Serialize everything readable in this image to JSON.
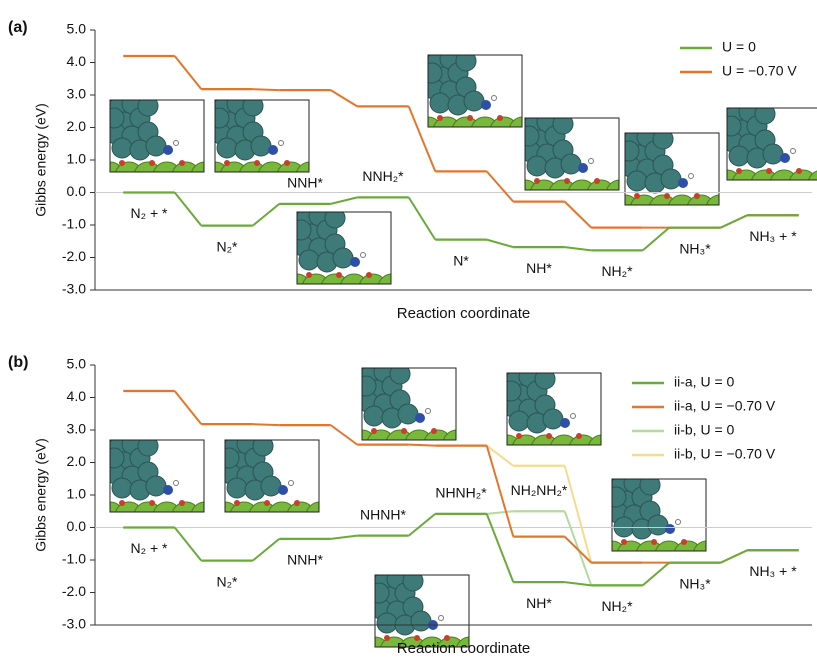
{
  "chart_data": [
    {
      "type": "step",
      "title": "(a)",
      "y_label": "Gibbs energy (eV)",
      "x_label": "Reaction coordinate",
      "categories": [
        "N₂ + *",
        "N₂*",
        "NNH*",
        "NNH₂*",
        "N*",
        "NH*",
        "NH₂*",
        "NH₃*",
        "NH₃ + *"
      ],
      "series": [
        {
          "name": "U = 0",
          "color": "#6aaa3a",
          "values": [
            0,
            -1.02,
            -0.35,
            -0.15,
            -1.45,
            -1.68,
            -1.78,
            -1.08,
            -0.7
          ]
        },
        {
          "name": "U = −0.70 V",
          "color": "#e3762c",
          "values": [
            4.2,
            3.18,
            3.15,
            2.65,
            0.65,
            -0.28,
            -1.08,
            -1.08,
            -0.7
          ]
        }
      ],
      "ylim": [
        -3,
        5
      ],
      "yticks": [
        {
          "value": 5,
          "label": "5.0"
        },
        {
          "value": 4,
          "label": "4.0"
        },
        {
          "value": 3,
          "label": "3.0"
        },
        {
          "value": 2,
          "label": "2.0"
        },
        {
          "value": 1,
          "label": "1.0"
        },
        {
          "value": 0,
          "label": "0.0"
        },
        {
          "value": -1,
          "label": "-1.0"
        },
        {
          "value": -2,
          "label": "-2.0"
        },
        {
          "value": -3,
          "label": "-3.0"
        }
      ],
      "legend": "upper right"
    },
    {
      "type": "step",
      "title": "(b)",
      "y_label": "Gibbs energy (eV)",
      "x_label": "Reaction coordinate",
      "categories": [
        "N₂ + *",
        "N₂*",
        "NNH*",
        "NHNH*",
        "NHNH₂*",
        "NH*",
        "NH₂*",
        "NH₃*",
        "NH₃ + *"
      ],
      "annotations": [
        "NH₂NH₂*"
      ],
      "series": [
        {
          "name": "ii-a, U = 0",
          "color": "#6aaa3a",
          "values": [
            0,
            -1.02,
            -0.35,
            -0.25,
            0.42,
            -1.68,
            -1.78,
            -1.08,
            -0.7
          ]
        },
        {
          "name": "ii-a, U = −0.70 V",
          "color": "#e3762c",
          "values": [
            4.2,
            3.18,
            3.15,
            2.55,
            2.52,
            -0.28,
            -1.08,
            -1.08,
            -0.7
          ]
        },
        {
          "name": "ii-b, U = 0",
          "color": "#b5d9a0",
          "values": [
            null,
            null,
            null,
            null,
            0.42,
            0.5,
            -1.78,
            null,
            null
          ]
        },
        {
          "name": "ii-b, U = −0.70 V",
          "color": "#f7db8c",
          "values": [
            null,
            null,
            null,
            null,
            2.52,
            1.9,
            -1.08,
            null,
            null
          ]
        }
      ],
      "ylim": [
        -3,
        5
      ],
      "yticks": [
        {
          "value": 5,
          "label": "5.0"
        },
        {
          "value": 4,
          "label": "4.0"
        },
        {
          "value": 3,
          "label": "3.0"
        },
        {
          "value": 2,
          "label": "2.0"
        },
        {
          "value": 1,
          "label": "1.0"
        },
        {
          "value": 0,
          "label": "0.0"
        },
        {
          "value": -1,
          "label": "-1.0"
        },
        {
          "value": -2,
          "label": "-2.0"
        },
        {
          "value": -3,
          "label": "-3.0"
        }
      ],
      "legend": "upper right"
    }
  ]
}
